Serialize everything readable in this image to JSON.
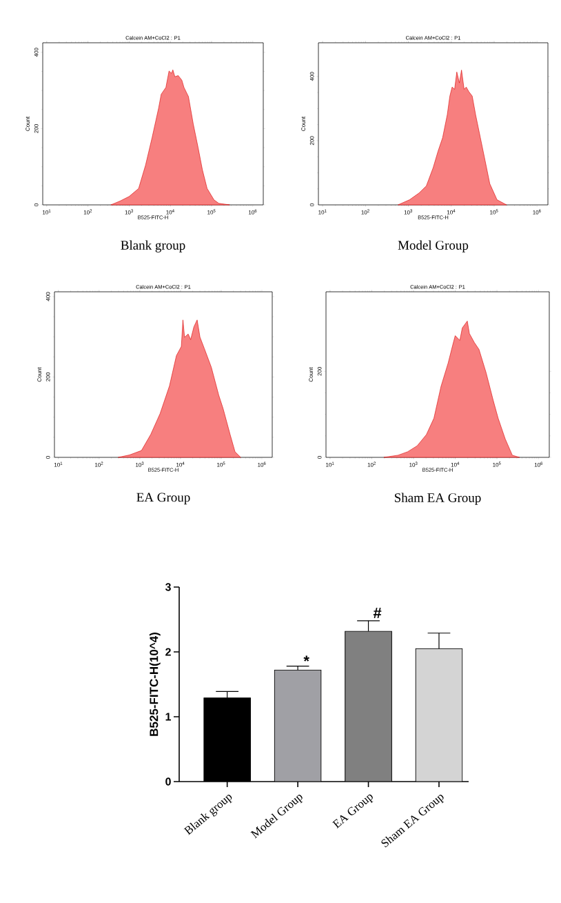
{
  "chart_data": [
    {
      "type": "area",
      "title": "Calcein AM+CoCl2 : P1",
      "xlabel": "B525-FITC-H",
      "ylabel": "Count",
      "annotations": [
        "Blank group"
      ],
      "log": "x",
      "xlim": [
        8,
        1800000
      ],
      "ylim": [
        0,
        425
      ],
      "xticks": [
        {
          "value": 10,
          "label": "10$^{1}$"
        },
        {
          "value": 100,
          "label": "10$^{2}$"
        },
        {
          "value": 1000,
          "label": "10$^{3}$"
        },
        {
          "value": 10000,
          "label": "10$^{4}$"
        },
        {
          "value": 100000,
          "label": "10$^{5}$"
        },
        {
          "value": 1000000,
          "label": "10$^{6}$"
        }
      ],
      "yticks": [
        0,
        200,
        400
      ],
      "series": [
        {
          "color": "#f77f7f",
          "x": [
            360,
            600,
            1000,
            1700,
            2500,
            3600,
            5200,
            6000,
            7800,
            9300,
            10700,
            11500,
            12900,
            15500,
            19000,
            21400,
            27500,
            36000,
            47000,
            60000,
            78000,
            115000,
            150000,
            275000
          ],
          "values": [
            0,
            10,
            22,
            43,
            104,
            176,
            254,
            290,
            308,
            351,
            345,
            354,
            336,
            339,
            327,
            308,
            284,
            212,
            151,
            92,
            43,
            13,
            4,
            0
          ]
        }
      ]
    },
    {
      "type": "area",
      "title": "Calcein AM+CoCl2 : P1",
      "xlabel": "B525-FITC-H",
      "ylabel": "Count",
      "annotations": [
        "Model Group"
      ],
      "log": "x",
      "xlim": [
        8,
        1800000
      ],
      "ylim": [
        0,
        505
      ],
      "xticks": [
        {
          "value": 10,
          "label": "10$^{1}$"
        },
        {
          "value": 100,
          "label": "10$^{2}$"
        },
        {
          "value": 1000,
          "label": "10$^{3}$"
        },
        {
          "value": 10000,
          "label": "10$^{4}$"
        },
        {
          "value": 100000,
          "label": "10$^{5}$"
        },
        {
          "value": 1000000,
          "label": "10$^{6}$"
        }
      ],
      "yticks": [
        0,
        200,
        400
      ],
      "series": [
        {
          "color": "#f77f7f",
          "x": [
            575,
            1070,
            1780,
            2630,
            3800,
            4900,
            6300,
            8100,
            9300,
            10500,
            12000,
            13500,
            15500,
            17400,
            20000,
            22400,
            25700,
            30900,
            37200,
            47900,
            61700,
            79400,
            117000,
            195000
          ],
          "values": [
            0,
            16,
            37,
            59,
            116,
            166,
            209,
            281,
            339,
            367,
            360,
            414,
            380,
            420,
            360,
            367,
            353,
            339,
            280,
            209,
            138,
            66,
            16,
            0
          ]
        }
      ]
    },
    {
      "type": "area",
      "title": "Calcein AM+CoCl2 : P1",
      "xlabel": "B525-FITC-H",
      "ylabel": "Count",
      "annotations": [
        "EA Group"
      ],
      "log": "x",
      "xlim": [
        8,
        1800000
      ],
      "ylim": [
        0,
        412
      ],
      "xticks": [
        {
          "value": 10,
          "label": "10$^{1}$"
        },
        {
          "value": 100,
          "label": "10$^{2}$"
        },
        {
          "value": 1000,
          "label": "10$^{3}$"
        },
        {
          "value": 10000,
          "label": "10$^{4}$"
        },
        {
          "value": 100000,
          "label": "10$^{5}$"
        },
        {
          "value": 1000000,
          "label": "10$^{6}$"
        }
      ],
      "yticks": [
        0,
        200,
        400
      ],
      "series": [
        {
          "color": "#f77f7f",
          "x": [
            295,
            560,
            1100,
            1860,
            3160,
            5370,
            7940,
            10500,
            11500,
            12600,
            15500,
            17800,
            21400,
            25700,
            30200,
            38900,
            57500,
            87100,
            112000,
            166000,
            219000,
            302000
          ],
          "values": [
            0,
            6,
            17,
            57,
            109,
            178,
            253,
            276,
            342,
            299,
            307,
            293,
            325,
            342,
            299,
            270,
            224,
            155,
            121,
            57,
            14,
            0
          ]
        }
      ]
    },
    {
      "type": "area",
      "title": "Calcein AM+CoCl2 : P1",
      "xlabel": "B525-FITC-H",
      "ylabel": "Count",
      "annotations": [
        "Sham EA Group"
      ],
      "log": "x",
      "xlim": [
        8,
        1800000
      ],
      "ylim": [
        0,
        385
      ],
      "xticks": [
        {
          "value": 10,
          "label": "10$^{1}$"
        },
        {
          "value": 100,
          "label": "10$^{2}$"
        },
        {
          "value": 1000,
          "label": "10$^{3}$"
        },
        {
          "value": 10000,
          "label": "10$^{4}$"
        },
        {
          "value": 100000,
          "label": "10$^{5}$"
        },
        {
          "value": 1000000,
          "label": "10$^{6}$"
        }
      ],
      "yticks": [
        0,
        200
      ],
      "series": [
        {
          "color": "#f77f7f",
          "x": [
            195,
            427,
            724,
            1230,
            2040,
            3090,
            4570,
            6760,
            8710,
            10000,
            12900,
            14800,
            19500,
            21900,
            28800,
            37200,
            55000,
            81300,
            107000,
            158000,
            234000,
            347000
          ],
          "values": [
            0,
            5,
            13,
            27,
            53,
            91,
            165,
            219,
            261,
            283,
            272,
            301,
            317,
            288,
            267,
            251,
            197,
            133,
            91,
            43,
            5,
            0
          ]
        }
      ]
    },
    {
      "type": "bar",
      "ylabel": "B525-FITC-H(10^4)",
      "categories": [
        "Blank group",
        "Model Group",
        "EA Group",
        "Sham EA Group"
      ],
      "values": [
        1.29,
        1.72,
        2.32,
        2.05
      ],
      "colors": [
        "#000000",
        "#a0a0a5",
        "#808080",
        "#d4d4d4"
      ],
      "errors": [
        [
          1.29,
          1.39
        ],
        [
          1.72,
          1.78
        ],
        [
          2.32,
          2.48
        ],
        [
          2.05,
          2.29
        ]
      ],
      "ylim": [
        0,
        3
      ],
      "yticks": [
        0,
        1,
        2,
        3
      ],
      "annotations": [
        "*",
        "#"
      ]
    }
  ]
}
